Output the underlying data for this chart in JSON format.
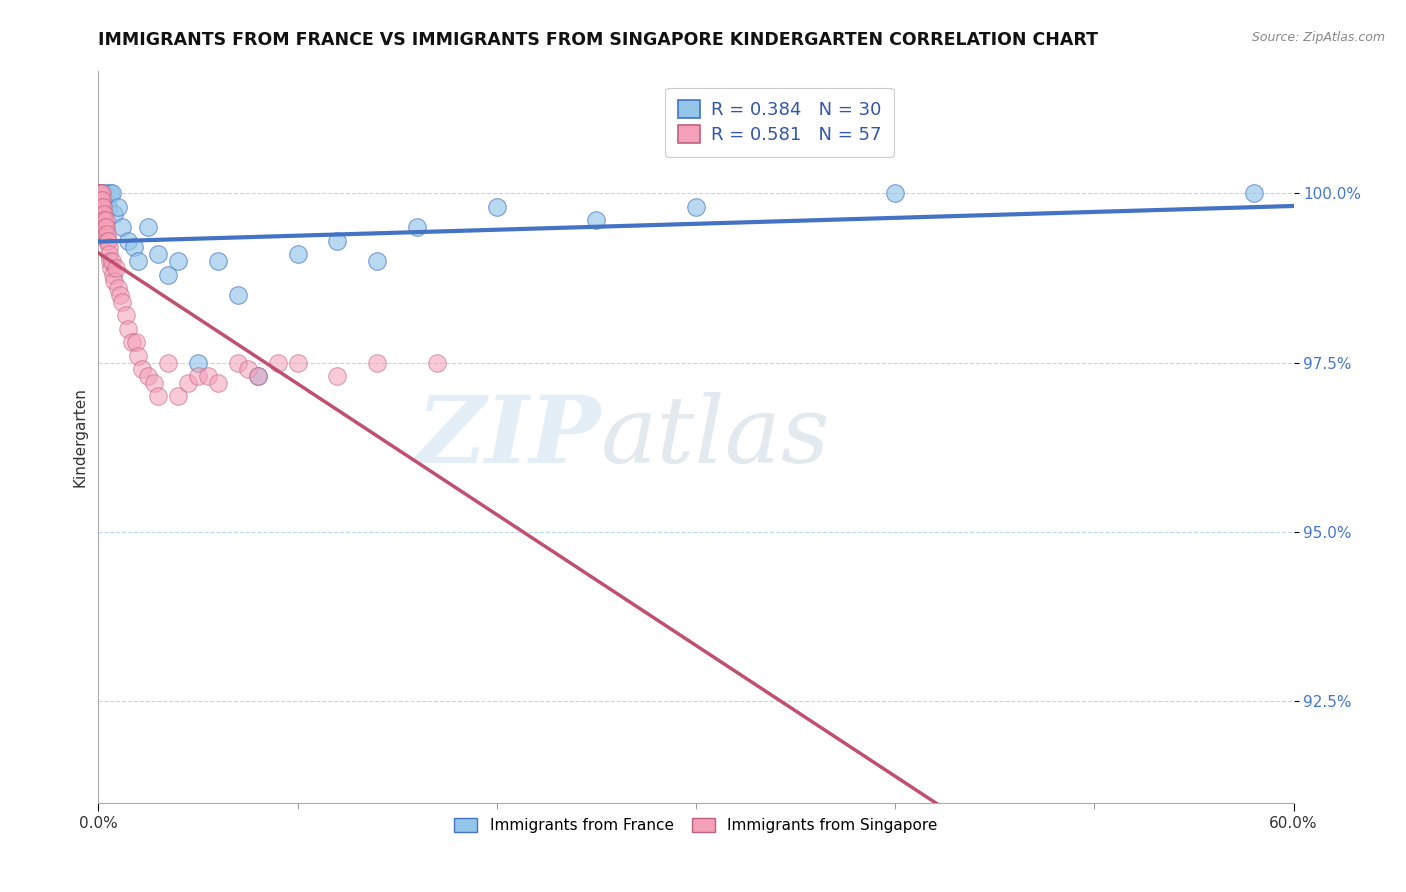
{
  "title": "IMMIGRANTS FROM FRANCE VS IMMIGRANTS FROM SINGAPORE KINDERGARTEN CORRELATION CHART",
  "source_text": "Source: ZipAtlas.com",
  "ylabel": "Kindergarten",
  "x_min": 0.0,
  "x_max": 60.0,
  "y_min": 91.0,
  "y_max": 101.8,
  "ytick_labels": [
    "92.5%",
    "95.0%",
    "97.5%",
    "100.0%"
  ],
  "ytick_values": [
    92.5,
    95.0,
    97.5,
    100.0
  ],
  "xtick_labels": [
    "0.0%",
    "60.0%"
  ],
  "xtick_values": [
    0.0,
    60.0
  ],
  "legend_france_label": "Immigrants from France",
  "legend_singapore_label": "Immigrants from Singapore",
  "france_color": "#93c6e8",
  "singapore_color": "#f4a0b8",
  "france_R": 0.384,
  "france_N": 30,
  "singapore_R": 0.581,
  "singapore_N": 57,
  "france_line_color": "#4472c4",
  "singapore_line_color": "#c05070",
  "watermark_zip": "ZIP",
  "watermark_atlas": "atlas",
  "france_points_x": [
    0.1,
    0.2,
    0.3,
    0.4,
    0.5,
    0.6,
    0.7,
    0.8,
    1.0,
    1.2,
    1.5,
    1.8,
    2.0,
    2.5,
    3.0,
    3.5,
    4.0,
    5.0,
    6.0,
    7.0,
    8.0,
    10.0,
    12.0,
    14.0,
    16.0,
    20.0,
    25.0,
    30.0,
    40.0,
    58.0
  ],
  "france_points_y": [
    100.0,
    100.0,
    99.9,
    100.0,
    99.8,
    100.0,
    100.0,
    99.7,
    99.8,
    99.5,
    99.3,
    99.2,
    99.0,
    99.5,
    99.1,
    98.8,
    99.0,
    97.5,
    99.0,
    98.5,
    97.3,
    99.1,
    99.3,
    99.0,
    99.5,
    99.8,
    99.6,
    99.8,
    100.0,
    100.0
  ],
  "singapore_points_x": [
    0.05,
    0.07,
    0.09,
    0.1,
    0.12,
    0.14,
    0.15,
    0.16,
    0.18,
    0.2,
    0.22,
    0.24,
    0.25,
    0.27,
    0.28,
    0.3,
    0.32,
    0.35,
    0.37,
    0.4,
    0.42,
    0.45,
    0.5,
    0.52,
    0.55,
    0.6,
    0.65,
    0.7,
    0.75,
    0.8,
    0.9,
    1.0,
    1.1,
    1.2,
    1.4,
    1.5,
    1.7,
    1.9,
    2.0,
    2.2,
    2.5,
    2.8,
    3.0,
    3.5,
    4.0,
    4.5,
    5.0,
    5.5,
    6.0,
    7.0,
    7.5,
    8.0,
    9.0,
    10.0,
    12.0,
    14.0,
    17.0
  ],
  "singapore_points_y": [
    100.0,
    99.9,
    100.0,
    99.9,
    100.0,
    99.8,
    99.9,
    100.0,
    99.8,
    99.9,
    99.7,
    99.8,
    99.6,
    99.5,
    99.7,
    99.6,
    99.5,
    99.4,
    99.6,
    99.5,
    99.3,
    99.4,
    99.3,
    99.2,
    99.1,
    99.0,
    98.9,
    99.0,
    98.8,
    98.7,
    98.9,
    98.6,
    98.5,
    98.4,
    98.2,
    98.0,
    97.8,
    97.8,
    97.6,
    97.4,
    97.3,
    97.2,
    97.0,
    97.5,
    97.0,
    97.2,
    97.3,
    97.3,
    97.2,
    97.5,
    97.4,
    97.3,
    97.5,
    97.5,
    97.3,
    97.5,
    97.5
  ]
}
